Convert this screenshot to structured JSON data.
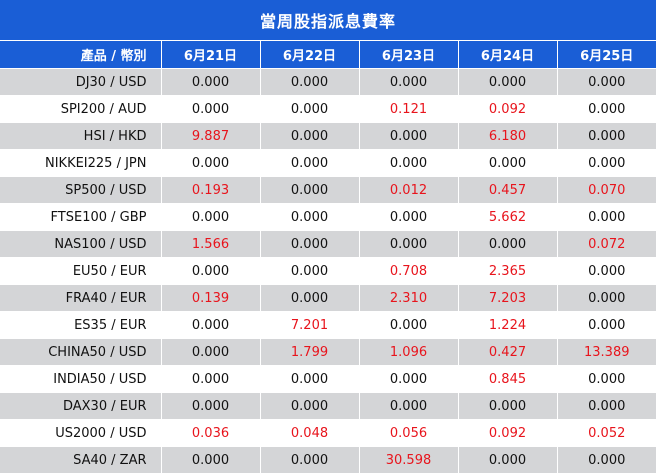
{
  "title": "當周股指派息費率",
  "header": {
    "product": "產品 / 幣別",
    "days": [
      "6月21日",
      "6月22日",
      "6月23日",
      "6月24日",
      "6月25日"
    ]
  },
  "rows": [
    {
      "name": "DJ30 / USD",
      "values": [
        "0.000",
        "0.000",
        "0.000",
        "0.000",
        "0.000"
      ],
      "highlight": [
        false,
        false,
        false,
        false,
        false
      ]
    },
    {
      "name": "SPI200 / AUD",
      "values": [
        "0.000",
        "0.000",
        "0.121",
        "0.092",
        "0.000"
      ],
      "highlight": [
        false,
        false,
        true,
        true,
        false
      ]
    },
    {
      "name": "HSI / HKD",
      "values": [
        "9.887",
        "0.000",
        "0.000",
        "6.180",
        "0.000"
      ],
      "highlight": [
        true,
        false,
        false,
        true,
        false
      ]
    },
    {
      "name": "NIKKEI225 / JPN",
      "values": [
        "0.000",
        "0.000",
        "0.000",
        "0.000",
        "0.000"
      ],
      "highlight": [
        false,
        false,
        false,
        false,
        false
      ]
    },
    {
      "name": "SP500 / USD",
      "values": [
        "0.193",
        "0.000",
        "0.012",
        "0.457",
        "0.070"
      ],
      "highlight": [
        true,
        false,
        true,
        true,
        true
      ]
    },
    {
      "name": "FTSE100 / GBP",
      "values": [
        "0.000",
        "0.000",
        "0.000",
        "5.662",
        "0.000"
      ],
      "highlight": [
        false,
        false,
        false,
        true,
        false
      ]
    },
    {
      "name": "NAS100 / USD",
      "values": [
        "1.566",
        "0.000",
        "0.000",
        "0.000",
        "0.072"
      ],
      "highlight": [
        true,
        false,
        false,
        false,
        true
      ]
    },
    {
      "name": "EU50 / EUR",
      "values": [
        "0.000",
        "0.000",
        "0.708",
        "2.365",
        "0.000"
      ],
      "highlight": [
        false,
        false,
        true,
        true,
        false
      ]
    },
    {
      "name": "FRA40 / EUR",
      "values": [
        "0.139",
        "0.000",
        "2.310",
        "7.203",
        "0.000"
      ],
      "highlight": [
        true,
        false,
        true,
        true,
        false
      ]
    },
    {
      "name": "ES35 / EUR",
      "values": [
        "0.000",
        "7.201",
        "0.000",
        "1.224",
        "0.000"
      ],
      "highlight": [
        false,
        true,
        false,
        true,
        false
      ]
    },
    {
      "name": "CHINA50 / USD",
      "values": [
        "0.000",
        "1.799",
        "1.096",
        "0.427",
        "13.389"
      ],
      "highlight": [
        false,
        true,
        true,
        true,
        true
      ]
    },
    {
      "name": "INDIA50 / USD",
      "values": [
        "0.000",
        "0.000",
        "0.000",
        "0.845",
        "0.000"
      ],
      "highlight": [
        false,
        false,
        false,
        true,
        false
      ]
    },
    {
      "name": "DAX30 / EUR",
      "values": [
        "0.000",
        "0.000",
        "0.000",
        "0.000",
        "0.000"
      ],
      "highlight": [
        false,
        false,
        false,
        false,
        false
      ]
    },
    {
      "name": "US2000 / USD",
      "values": [
        "0.036",
        "0.048",
        "0.056",
        "0.092",
        "0.052"
      ],
      "highlight": [
        true,
        true,
        true,
        true,
        true
      ]
    },
    {
      "name": "SA40 / ZAR",
      "values": [
        "0.000",
        "0.000",
        "30.598",
        "0.000",
        "0.000"
      ],
      "highlight": [
        false,
        false,
        true,
        false,
        false
      ]
    }
  ],
  "colors": {
    "header": "#1a5ed6",
    "stripe": "#d4d5d7",
    "positive": "#e8141c"
  }
}
